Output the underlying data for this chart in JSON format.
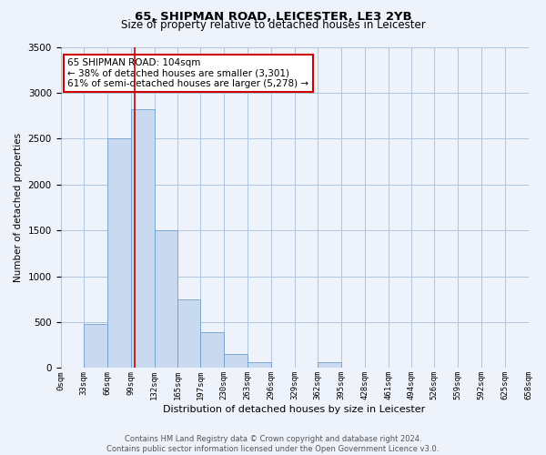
{
  "title_line1": "65, SHIPMAN ROAD, LEICESTER, LE3 2YB",
  "title_line2": "Size of property relative to detached houses in Leicester",
  "xlabel": "Distribution of detached houses by size in Leicester",
  "ylabel": "Number of detached properties",
  "bin_edges": [
    0,
    33,
    66,
    99,
    132,
    165,
    197,
    230,
    263,
    296,
    329,
    362,
    395,
    428,
    461,
    494,
    526,
    559,
    592,
    625,
    658
  ],
  "bar_heights": [
    0,
    480,
    2500,
    2820,
    1500,
    750,
    390,
    150,
    60,
    0,
    0,
    60,
    0,
    0,
    0,
    0,
    0,
    0,
    0,
    0
  ],
  "bar_color": "#c9d9f0",
  "bar_edge_color": "#6fa0cc",
  "vline_x": 104,
  "vline_color": "#cc0000",
  "ylim": [
    0,
    3500
  ],
  "annotation_title": "65 SHIPMAN ROAD: 104sqm",
  "annotation_line2": "← 38% of detached houses are smaller (3,301)",
  "annotation_line3": "61% of semi-detached houses are larger (5,278) →",
  "annotation_box_color": "#cc0000",
  "annotation_bg_color": "#ffffff",
  "tick_labels": [
    "0sqm",
    "33sqm",
    "66sqm",
    "99sqm",
    "132sqm",
    "165sqm",
    "197sqm",
    "230sqm",
    "263sqm",
    "296sqm",
    "329sqm",
    "362sqm",
    "395sqm",
    "428sqm",
    "461sqm",
    "494sqm",
    "526sqm",
    "559sqm",
    "592sqm",
    "625sqm",
    "658sqm"
  ],
  "grid_color": "#b0c4de",
  "bg_color": "#eef2fb",
  "footer_line1": "Contains HM Land Registry data © Crown copyright and database right 2024.",
  "footer_line2": "Contains public sector information licensed under the Open Government Licence v3.0."
}
